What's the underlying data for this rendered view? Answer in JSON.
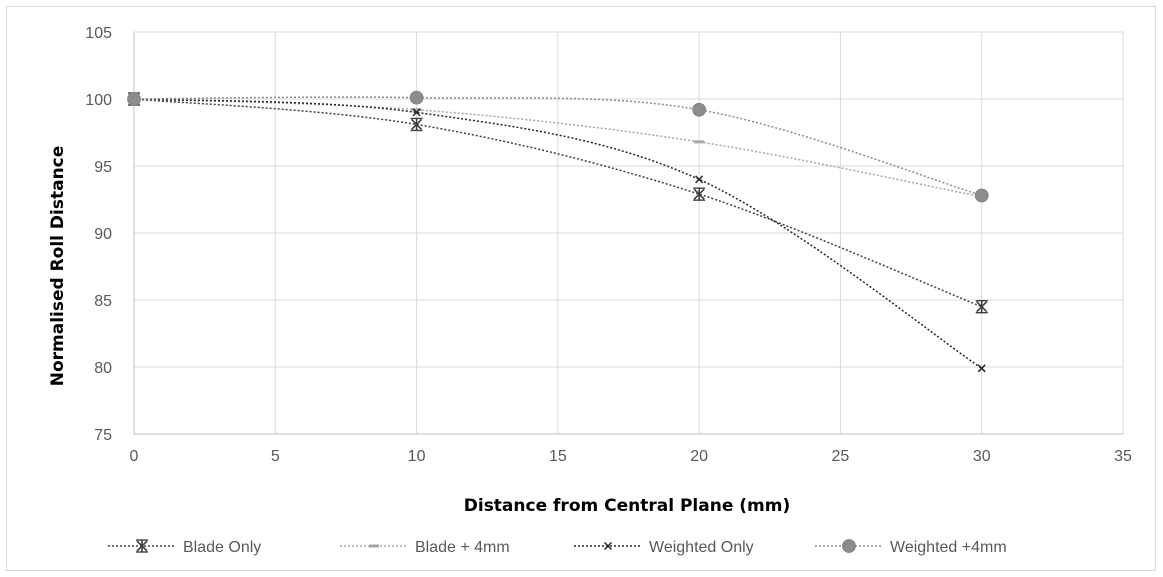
{
  "chart_data": {
    "type": "line",
    "title": "",
    "xlabel": "Distance from Central Plane (mm)",
    "ylabel": "Normalised Roll Distance",
    "xlim": [
      0,
      35
    ],
    "ylim": [
      75,
      105
    ],
    "x_ticks": [
      0,
      5,
      10,
      15,
      20,
      25,
      30,
      35
    ],
    "y_ticks": [
      75,
      80,
      85,
      90,
      95,
      100,
      105
    ],
    "grid": "on",
    "legend_position": "bottom",
    "series": [
      {
        "name": "Blade Only",
        "x": [
          0,
          10,
          20,
          30
        ],
        "y": [
          100,
          98.1,
          92.9,
          84.5
        ],
        "color": "#404040",
        "marker": "asterisk"
      },
      {
        "name": "Blade + 4mm",
        "x": [
          0,
          10,
          20,
          30
        ],
        "y": [
          100,
          99.2,
          96.8,
          92.7
        ],
        "color": "#a6a6a6",
        "marker": "dash"
      },
      {
        "name": "Weighted Only",
        "x": [
          0,
          10,
          20,
          30
        ],
        "y": [
          100,
          99.0,
          94.0,
          79.9
        ],
        "color": "#262626",
        "marker": "x"
      },
      {
        "name": "Weighted +4mm",
        "x": [
          0,
          10,
          20,
          30
        ],
        "y": [
          100,
          100.1,
          99.2,
          92.8
        ],
        "color": "#8c8c8c",
        "marker": "circle"
      }
    ]
  }
}
